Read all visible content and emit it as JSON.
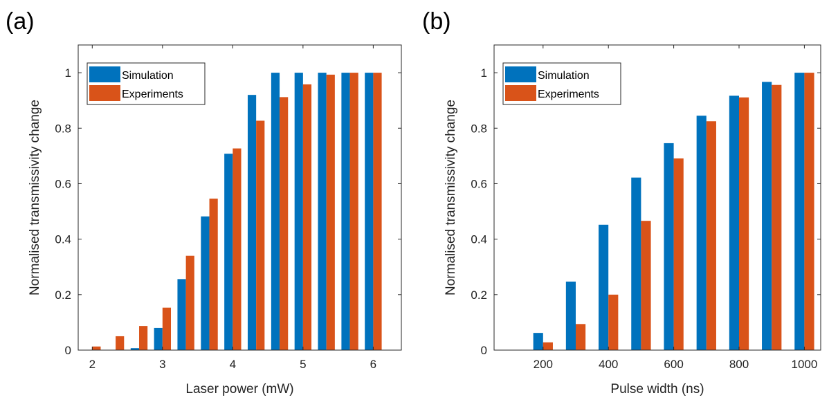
{
  "colors": {
    "simulation": "#0072BD",
    "experiments": "#D95319"
  },
  "chart_data": [
    {
      "type": "bar",
      "panel_label": "(a)",
      "xlabel": "Laser power (mW)",
      "ylabel": "Normalised transmissivity change",
      "xlim": [
        1.8,
        6.4
      ],
      "ylim": [
        0,
        1.1
      ],
      "xticks": [
        2,
        3,
        4,
        5,
        6
      ],
      "xticklabels": [
        "2",
        "3",
        "4",
        "5",
        "6"
      ],
      "yticks": [
        0,
        0.2,
        0.4,
        0.6,
        0.8,
        1
      ],
      "yticklabels": [
        "0",
        "0.2",
        "0.4",
        "0.6",
        "0.8",
        "1"
      ],
      "bar_width": 0.12,
      "x": [
        2.0,
        2.333,
        2.667,
        3.0,
        3.333,
        3.667,
        4.0,
        4.333,
        4.667,
        5.0,
        5.333,
        5.667,
        6.0
      ],
      "series": [
        {
          "name": "Simulation",
          "values": [
            0.0,
            0.0,
            0.007,
            0.08,
            0.256,
            0.482,
            0.708,
            0.92,
            1.0,
            1.0,
            1.0,
            1.0,
            1.0
          ]
        },
        {
          "name": "Experiments",
          "values": [
            0.013,
            0.05,
            0.087,
            0.153,
            0.34,
            0.546,
            0.727,
            0.827,
            0.912,
            0.958,
            0.993,
            1.0,
            1.0
          ]
        }
      ],
      "legend_position": "top-left",
      "grid": false
    },
    {
      "type": "bar",
      "panel_label": "(b)",
      "xlabel": "Pulse width (ns)",
      "ylabel": "Normalised transmissivity change",
      "xlim": [
        50,
        1050
      ],
      "ylim": [
        0,
        1.1
      ],
      "xticks": [
        200,
        400,
        600,
        800,
        1000
      ],
      "xticklabels": [
        "200",
        "400",
        "600",
        "800",
        "1000"
      ],
      "yticks": [
        0,
        0.2,
        0.4,
        0.6,
        0.8,
        1
      ],
      "yticklabels": [
        "0",
        "0.2",
        "0.4",
        "0.6",
        "0.8",
        "1"
      ],
      "bar_width": 30,
      "x": [
        100,
        200,
        300,
        400,
        500,
        600,
        700,
        800,
        900,
        1000
      ],
      "series": [
        {
          "name": "Simulation",
          "values": [
            0.0,
            0.062,
            0.247,
            0.452,
            0.622,
            0.746,
            0.845,
            0.917,
            0.967,
            1.0
          ]
        },
        {
          "name": "Experiments",
          "values": [
            0.0,
            0.028,
            0.094,
            0.2,
            0.466,
            0.691,
            0.825,
            0.911,
            0.956,
            1.0
          ]
        }
      ],
      "legend_position": "top-left",
      "grid": false
    }
  ]
}
